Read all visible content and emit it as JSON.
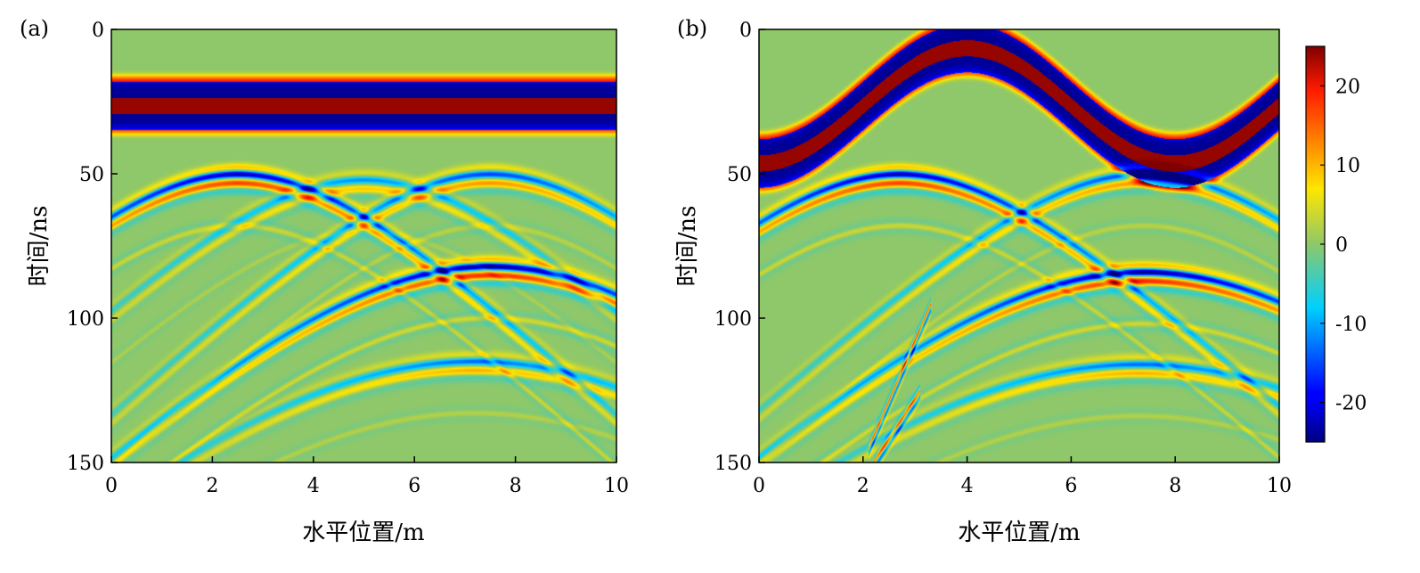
{
  "chart_data": [
    {
      "type": "heatmap",
      "panel_label": "(a)",
      "title": "",
      "xlabel": "水平位置/m",
      "ylabel": "时间/ns",
      "xlim": [
        0,
        10
      ],
      "ylim": [
        0,
        150
      ],
      "y_inverted": true,
      "xticks": [
        "0",
        "2",
        "4",
        "6",
        "8",
        "10"
      ],
      "yticks": [
        "0",
        "50",
        "100",
        "150"
      ],
      "features": {
        "surface_band": {
          "shape": "flat",
          "time_ns": 26,
          "amplitude": 24
        },
        "hyperbolas": [
          {
            "apex_x_m": 2.5,
            "apex_t_ns": 50,
            "amplitude": 20
          },
          {
            "apex_x_m": 5.0,
            "apex_t_ns": 52,
            "amplitude": 10
          },
          {
            "apex_x_m": 7.5,
            "apex_t_ns": 50,
            "amplitude": 14
          },
          {
            "apex_x_m": 7.5,
            "apex_t_ns": 82,
            "amplitude": 22
          },
          {
            "apex_x_m": 7.2,
            "apex_t_ns": 115,
            "amplitude": 12
          }
        ]
      }
    },
    {
      "type": "heatmap",
      "panel_label": "(b)",
      "title": "",
      "xlabel": "水平位置/m",
      "ylabel": "时间/ns",
      "xlim": [
        0,
        10
      ],
      "ylim": [
        0,
        150
      ],
      "y_inverted": true,
      "xticks": [
        "0",
        "2",
        "4",
        "6",
        "8",
        "10"
      ],
      "yticks": [
        "0",
        "50",
        "100",
        "150"
      ],
      "features": {
        "surface_band": {
          "shape": "sinusoidal",
          "mean_time_ns": 26,
          "swing_ns": 20,
          "period_m": 8,
          "peak_x_m": 4,
          "amplitude": 24
        },
        "hyperbolas": [
          {
            "apex_x_m": 2.7,
            "apex_t_ns": 50,
            "amplitude": 20
          },
          {
            "apex_x_m": 7.4,
            "apex_t_ns": 50,
            "amplitude": 14
          },
          {
            "apex_x_m": 7.4,
            "apex_t_ns": 84,
            "amplitude": 22
          },
          {
            "apex_x_m": 7.3,
            "apex_t_ns": 116,
            "amplitude": 12
          }
        ],
        "dipping_events": [
          {
            "from": [
              3.3,
              95
            ],
            "to": [
              2.1,
              145
            ],
            "amplitude": 14
          },
          {
            "from": [
              3.1,
              125
            ],
            "to": [
              2.2,
              150
            ],
            "amplitude": 14
          }
        ]
      }
    }
  ],
  "colorbar": {
    "range": [
      -25,
      25
    ],
    "ticks": [
      "20",
      "10",
      "0",
      "-10",
      "-20"
    ],
    "tick_values": [
      20,
      10,
      0,
      -10,
      -20
    ]
  }
}
